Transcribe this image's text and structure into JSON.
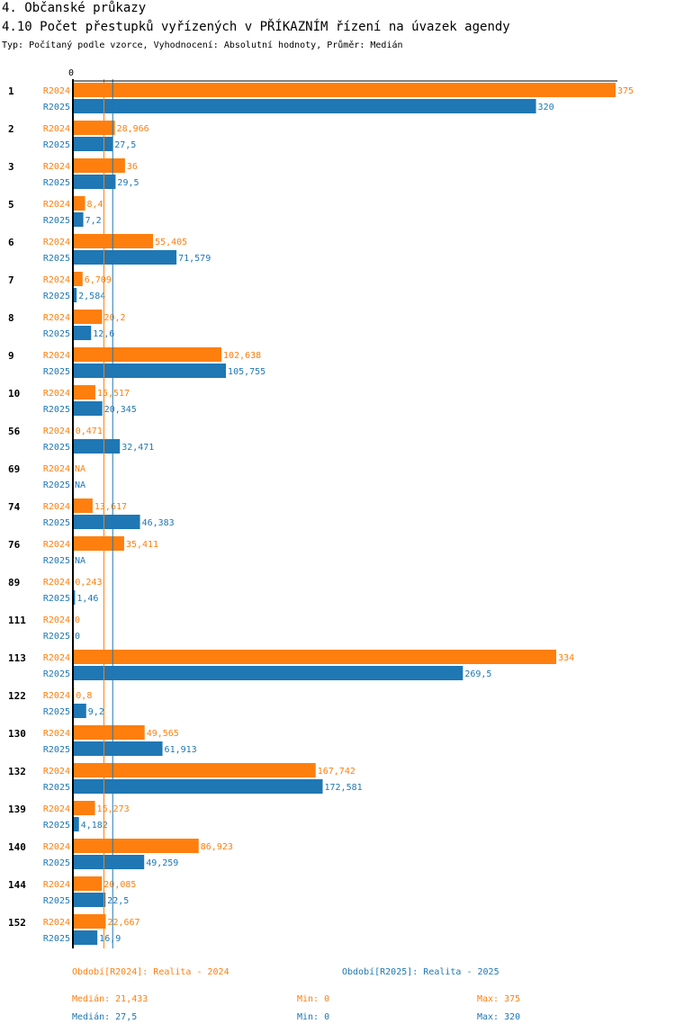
{
  "header": {
    "section": "4. Občanské průkazy",
    "title": "4.10 Počet přestupků vyřízených v PŘÍKAZNÍM řízení na úvazek agendy",
    "subtitle": "Typ: Počítaný podle vzorce, Vyhodnocení: Absolutní hodnoty, Průměr: Medián"
  },
  "colors": {
    "r2024": "#ff7f0e",
    "r2025": "#1f77b4",
    "axis": "#000000"
  },
  "chart_data": {
    "type": "bar",
    "orientation": "horizontal",
    "x_zero_label": "0",
    "xlim": [
      0,
      375
    ],
    "categories": [
      "1",
      "2",
      "3",
      "5",
      "6",
      "7",
      "8",
      "9",
      "10",
      "56",
      "69",
      "74",
      "76",
      "89",
      "111",
      "113",
      "122",
      "130",
      "132",
      "139",
      "140",
      "144",
      "152"
    ],
    "series": [
      {
        "name": "R2024",
        "values": [
          375,
          28.966,
          36,
          8.4,
          55.405,
          6.709,
          20.2,
          102.638,
          15.517,
          0.471,
          null,
          13.617,
          35.411,
          0.243,
          0,
          334,
          0.8,
          49.565,
          167.742,
          15.273,
          86.923,
          20.085,
          22.667
        ],
        "labels": [
          "375",
          "28,966",
          "36",
          "8,4",
          "55,405",
          "6,709",
          "20,2",
          "102,638",
          "15,517",
          "0,471",
          "NA",
          "13,617",
          "35,411",
          "0,243",
          "0",
          "334",
          "0,8",
          "49,565",
          "167,742",
          "15,273",
          "86,923",
          "20,085",
          "22,667"
        ]
      },
      {
        "name": "R2025",
        "values": [
          320,
          27.5,
          29.5,
          7.2,
          71.579,
          2.584,
          12.6,
          105.755,
          20.345,
          32.471,
          null,
          46.383,
          null,
          1.46,
          0,
          269.5,
          9.2,
          61.913,
          172.581,
          4.182,
          49.259,
          22.5,
          16.9
        ],
        "labels": [
          "320",
          "27,5",
          "29,5",
          "7,2",
          "71,579",
          "2,584",
          "12,6",
          "105,755",
          "20,345",
          "32,471",
          "NA",
          "46,383",
          "NA",
          "1,46",
          "0",
          "269,5",
          "9,2",
          "61,913",
          "172,581",
          "4,182",
          "49,259",
          "22,5",
          "16,9"
        ]
      }
    ],
    "median_lines": {
      "R2024": 21.433,
      "R2025": 27.5
    }
  },
  "legend": {
    "r2024": "Období[R2024]: Realita - 2024",
    "r2025": "Období[R2025]: Realita - 2025"
  },
  "stats": {
    "r2024": {
      "median": "Medián: 21,433",
      "min": "Min: 0",
      "max": "Max: 375"
    },
    "r2025": {
      "median": "Medián: 27,5",
      "min": "Min: 0",
      "max": "Max: 320"
    }
  }
}
